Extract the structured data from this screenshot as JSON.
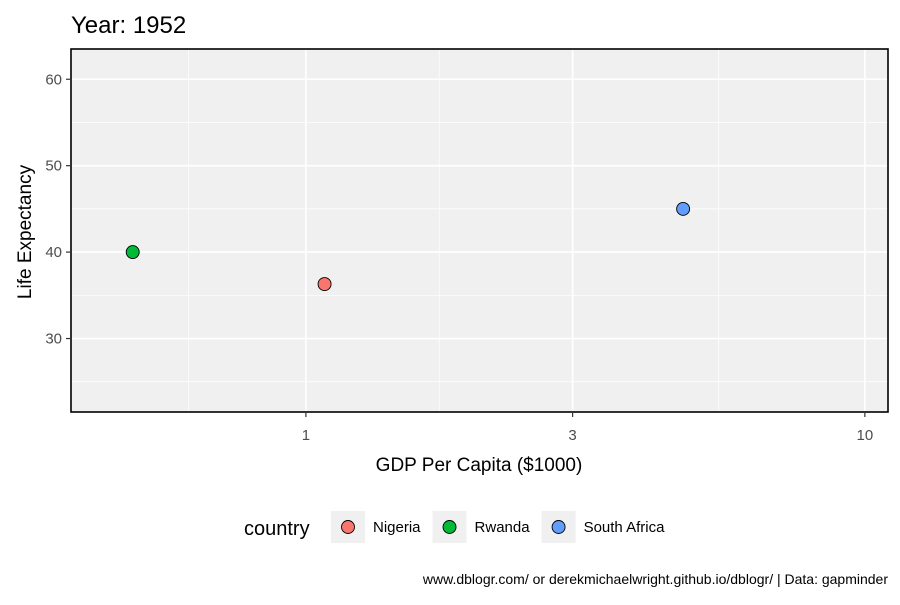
{
  "chart_data": {
    "type": "scatter",
    "title": "Year: 1952",
    "xlabel": "GDP Per Capita ($1000)",
    "ylabel": "Life Expectancy",
    "x_scale": "log",
    "xlim": [
      0.38,
      11.0
    ],
    "ylim": [
      21.5,
      63.5
    ],
    "x_ticks": [
      {
        "value": 1,
        "label": "1"
      },
      {
        "value": 3,
        "label": "3"
      },
      {
        "value": 10,
        "label": "10"
      }
    ],
    "y_ticks": [
      {
        "value": 30,
        "label": "30"
      },
      {
        "value": 40,
        "label": "40"
      },
      {
        "value": 50,
        "label": "50"
      },
      {
        "value": 60,
        "label": "60"
      }
    ],
    "grid": true,
    "legend_title": "country",
    "legend_position": "bottom",
    "series": [
      {
        "name": "Nigeria",
        "color": "#F8766D",
        "x": 1.08,
        "y": 36.3
      },
      {
        "name": "Rwanda",
        "color": "#00BA38",
        "x": 0.49,
        "y": 40.0
      },
      {
        "name": "South Africa",
        "color": "#619CFF",
        "x": 4.73,
        "y": 45.0
      }
    ],
    "caption": "www.dblogr.com/ or derekmichaelwright.github.io/dblogr/ | Data: gapminder"
  }
}
